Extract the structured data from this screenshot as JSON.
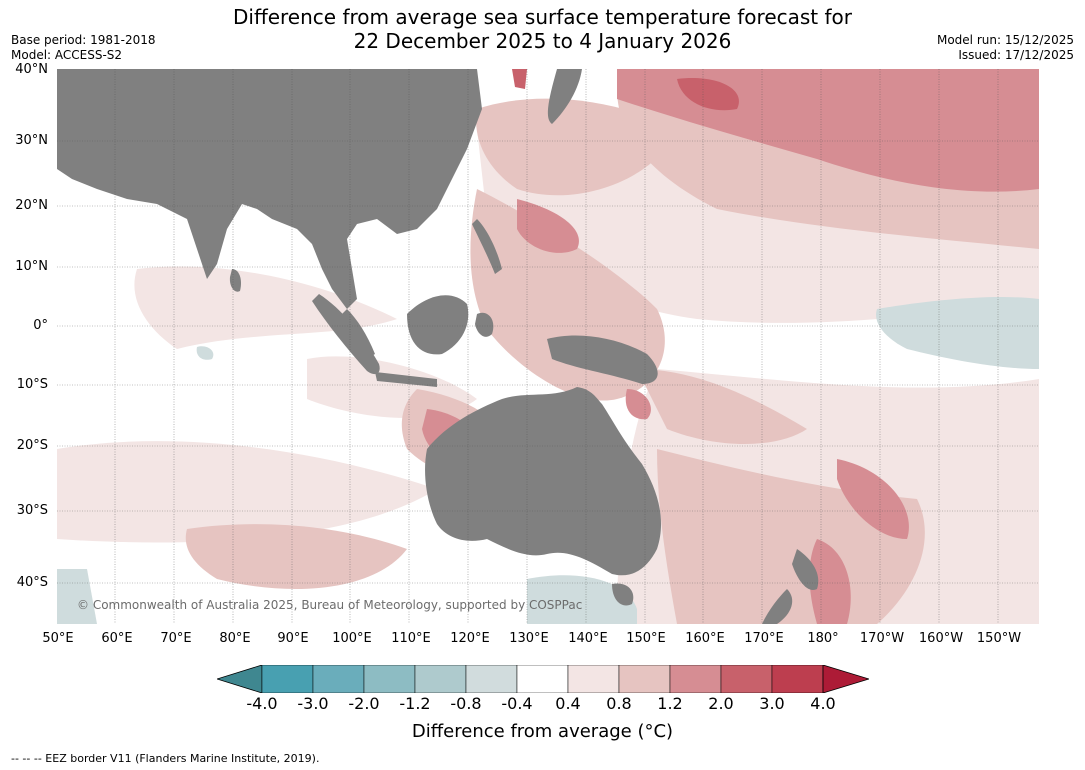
{
  "header": {
    "title_line1": "Difference from average sea surface temperature forecast for",
    "title_line2": "22 December 2025 to 4 January 2026",
    "base_period": "Base period: 1981-2018",
    "model": "Model: ACCESS-S2",
    "model_run": "Model run: 15/12/2025",
    "issued": "Issued: 17/12/2025"
  },
  "map": {
    "latitude_labels": [
      "40°N",
      "30°N",
      "20°N",
      "10°N",
      "0°",
      "10°S",
      "20°S",
      "30°S",
      "40°S"
    ],
    "longitude_labels": [
      "50°E",
      "60°E",
      "70°E",
      "80°E",
      "90°E",
      "100°E",
      "110°E",
      "120°E",
      "130°E",
      "140°E",
      "150°E",
      "160°E",
      "170°E",
      "180°",
      "170°W",
      "160°W",
      "150°W"
    ],
    "copyright": "© Commonwealth of Australia 2025, Bureau of Meteorology, supported by COSPPac",
    "land_color": "#808080",
    "ocean_neutral_color": "#ffffff"
  },
  "legend": {
    "label": "Difference from average (°C)",
    "ticks": [
      "-4.0",
      "-3.0",
      "-2.0",
      "-1.2",
      "-0.8",
      "-0.4",
      "0.4",
      "0.8",
      "1.2",
      "2.0",
      "3.0",
      "4.0"
    ],
    "colors": [
      "#3f8790",
      "#48a0b1",
      "#6aadbb",
      "#8dbcc3",
      "#aecacd",
      "#d1dcdd",
      "#ffffff",
      "#f3e5e4",
      "#e6c4c1",
      "#d68d93",
      "#c8616b",
      "#bd3e4f",
      "#ad1b36"
    ]
  },
  "footnote": "--  --  -- EEZ border V11 (Flanders Marine Institute, 2019)."
}
